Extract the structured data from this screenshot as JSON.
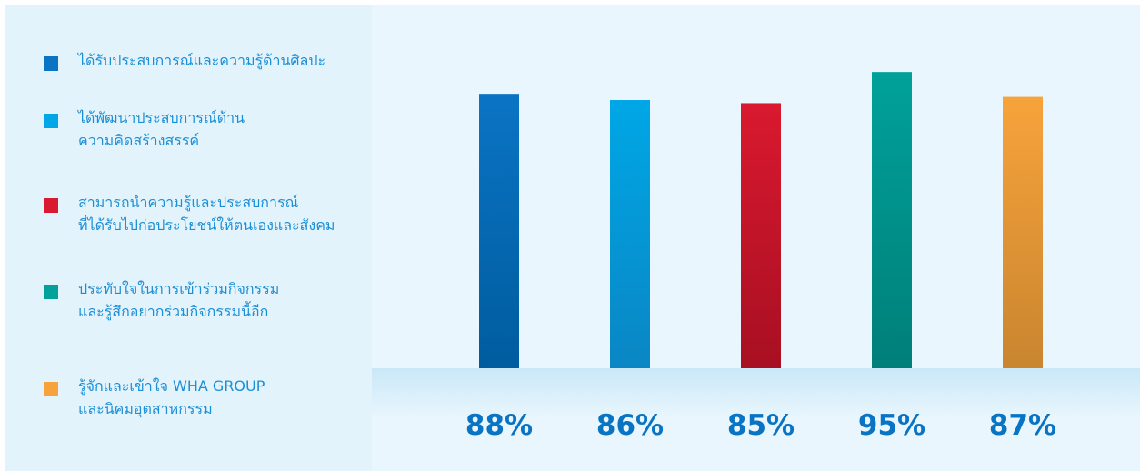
{
  "legend": {
    "items": [
      {
        "lines": [
          "ได้รับประสบการณ์และความรู้ด้านศิลปะ"
        ],
        "color": "#0a74c4"
      },
      {
        "lines": [
          "ได้พัฒนาประสบการณ์ด้าน",
          "ความคิดสร้างสรรค์"
        ],
        "color": "#00a7e6"
      },
      {
        "lines": [
          "สามารถนำความรู้และประสบการณ์",
          "ที่ได้รับไปก่อประโยชน์ให้ตนเองและสังคม"
        ],
        "color": "#d9192f"
      },
      {
        "lines": [
          "ประทับใจในการเข้าร่วมกิจกรรม",
          "และรู้สึกอยากร่วมกิจกรรมนี้อีก"
        ],
        "color": "#00a19a"
      },
      {
        "lines": [
          "รู้จักและเข้าใจ WHA GROUP",
          "และนิคมอุตสาหกรรม"
        ],
        "color": "#f7a33b"
      }
    ]
  },
  "chart_data": {
    "type": "bar",
    "categories": [
      "ได้รับประสบการณ์และความรู้ด้านศิลปะ",
      "ได้พัฒนาประสบการณ์ด้านความคิดสร้างสรรค์",
      "สามารถนำความรู้และประสบการณ์ที่ได้รับไปก่อประโยชน์ให้ตนเองและสังคม",
      "ประทับใจในการเข้าร่วมกิจกรรมและรู้สึกอยากร่วมกิจกรรมนี้อีก",
      "รู้จักและเข้าใจ WHA GROUP และนิคมอุตสาหกรรม"
    ],
    "values": [
      88,
      86,
      85,
      95,
      87
    ],
    "value_labels": [
      "88%",
      "86%",
      "85%",
      "95%",
      "87%"
    ],
    "colors": [
      "#0a74c4",
      "#00a7e6",
      "#d9192f",
      "#00a19a",
      "#f7a33b"
    ],
    "colors_dark": [
      "#005c9e",
      "#0a86c4",
      "#a80f22",
      "#007f79",
      "#c9852f"
    ],
    "grid": false,
    "legend_position": "left"
  }
}
